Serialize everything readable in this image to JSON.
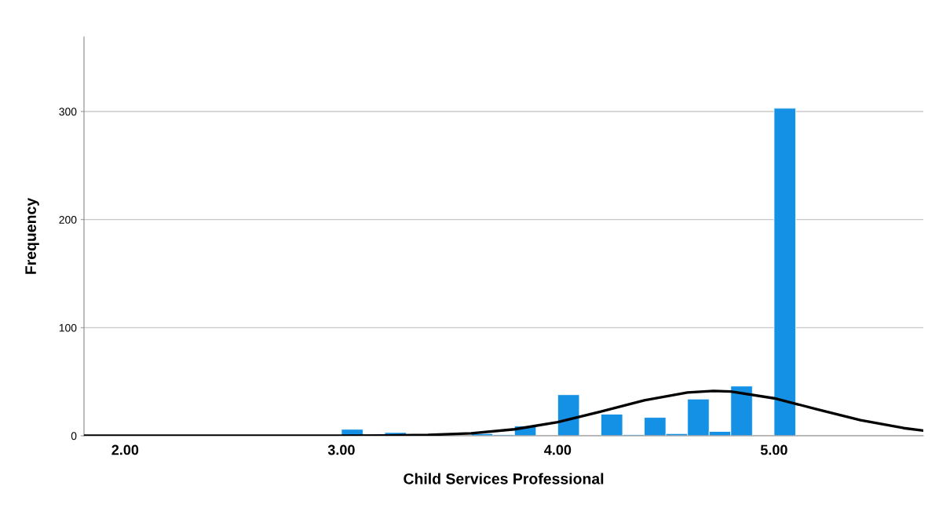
{
  "chart_data": {
    "type": "histogram",
    "xlabel": "Child Services Professional",
    "ylabel": "Frequency",
    "bins": [
      3.0,
      3.1,
      3.2,
      3.3,
      3.4,
      3.5,
      3.6,
      3.7,
      3.8,
      3.9,
      4.0,
      4.1,
      4.2,
      4.3,
      4.4,
      4.5,
      4.6,
      4.7,
      4.8,
      4.9,
      5.0,
      5.1
    ],
    "values": [
      6,
      0,
      3,
      0,
      0,
      0,
      2,
      1,
      9,
      0,
      38,
      0,
      20,
      1,
      17,
      2,
      34,
      4,
      46,
      0,
      303
    ],
    "color": "#1490e4",
    "series": [
      {
        "type": "line",
        "color": "#000000",
        "x": [
          1.81,
          3.0,
          3.2,
          3.4,
          3.6,
          3.8,
          4.0,
          4.2,
          4.4,
          4.6,
          4.72,
          4.8,
          5.0,
          5.2,
          5.4,
          5.6,
          5.69
        ],
        "values": [
          0,
          0,
          0.2,
          0.8,
          2.3,
          6.0,
          12.6,
          22.4,
          32.8,
          40.1,
          41.5,
          40.9,
          34.7,
          24.5,
          14.4,
          7.1,
          4.8
        ]
      }
    ],
    "xlim": [
      1.81,
      5.69
    ],
    "xticks": [
      {
        "value": 2,
        "label": "2.00"
      },
      {
        "value": 3,
        "label": "3.00"
      },
      {
        "value": 4,
        "label": "4.00"
      },
      {
        "value": 5,
        "label": "5.00"
      }
    ],
    "ylim": [
      0,
      369
    ],
    "yticks": [
      0,
      100,
      200,
      300
    ],
    "grid": "y",
    "legend": false
  }
}
